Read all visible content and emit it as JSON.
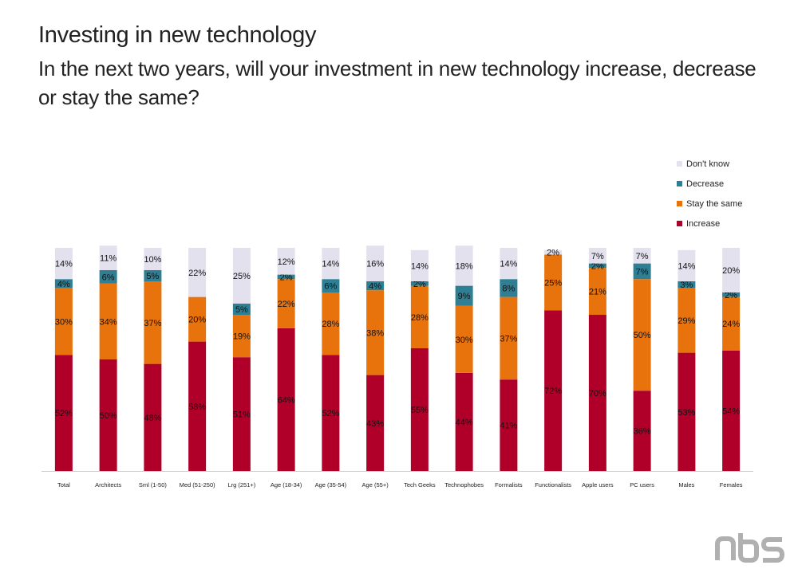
{
  "header": {
    "title": "Investing in new technology",
    "subtitle": "In the next two years, will your investment in new technology increase, decrease or stay the same?"
  },
  "logo": {
    "text": "nbs",
    "icon": "nbs-logo",
    "color": "#b0b0b0"
  },
  "chart_data": {
    "type": "bar",
    "stacked": true,
    "title": "",
    "xlabel": "",
    "ylabel": "",
    "ylim": [
      0,
      100
    ],
    "grid": false,
    "legend_position": "top-right",
    "categories": [
      "Total",
      "Architects",
      "Sml (1-50)",
      "Med (51-250)",
      "Lrg (251+)",
      "Age (18-34)",
      "Age (35-54)",
      "Age (55+)",
      "Tech Geeks",
      "Technophobes",
      "Formalists",
      "Functionalists",
      "Apple users",
      "PC users",
      "Males",
      "Females"
    ],
    "series": [
      {
        "name": "Increase",
        "color": "#b0002a",
        "values": [
          52,
          50,
          48,
          58,
          51,
          64,
          52,
          43,
          55,
          44,
          41,
          72,
          70,
          36,
          53,
          54
        ],
        "labels": [
          "52%",
          "50%",
          "48%",
          "58%",
          "51%",
          "64%",
          "52%",
          "43%",
          "55%",
          "44%",
          "41%",
          "72%",
          "70%",
          "36%",
          "53%",
          "54%"
        ]
      },
      {
        "name": "Stay the same",
        "color": "#e8730d",
        "values": [
          30,
          34,
          37,
          20,
          19,
          22,
          28,
          38,
          28,
          30,
          37,
          25,
          21,
          50,
          29,
          24
        ],
        "labels": [
          "30%",
          "34%",
          "37%",
          "20%",
          "19%",
          "22%",
          "28%",
          "38%",
          "28%",
          "30%",
          "37%",
          "25%",
          "21%",
          "50%",
          "29%",
          "24%"
        ]
      },
      {
        "name": "Decrease",
        "color": "#2e7f93",
        "values": [
          4,
          6,
          5,
          0,
          5,
          2,
          6,
          4,
          2,
          9,
          8,
          0,
          2,
          7,
          3,
          2
        ],
        "labels": [
          "4%",
          "6%",
          "5%",
          "",
          "5%",
          "2%",
          "6%",
          "4%",
          "2%",
          "9%",
          "8%",
          "",
          "2%",
          "7%",
          "3%",
          "2%"
        ]
      },
      {
        "name": "Don't know",
        "color": "#e4e1ee",
        "values": [
          14,
          11,
          10,
          22,
          25,
          12,
          14,
          16,
          14,
          18,
          14,
          2,
          7,
          7,
          14,
          20
        ],
        "labels": [
          "14%",
          "11%",
          "10%",
          "22%",
          "25%",
          "12%",
          "14%",
          "16%",
          "14%",
          "18%",
          "14%",
          "2%",
          "7%",
          "7%",
          "14%",
          "20%"
        ]
      }
    ],
    "legend_order": [
      "Don't know",
      "Decrease",
      "Stay the same",
      "Increase"
    ]
  }
}
